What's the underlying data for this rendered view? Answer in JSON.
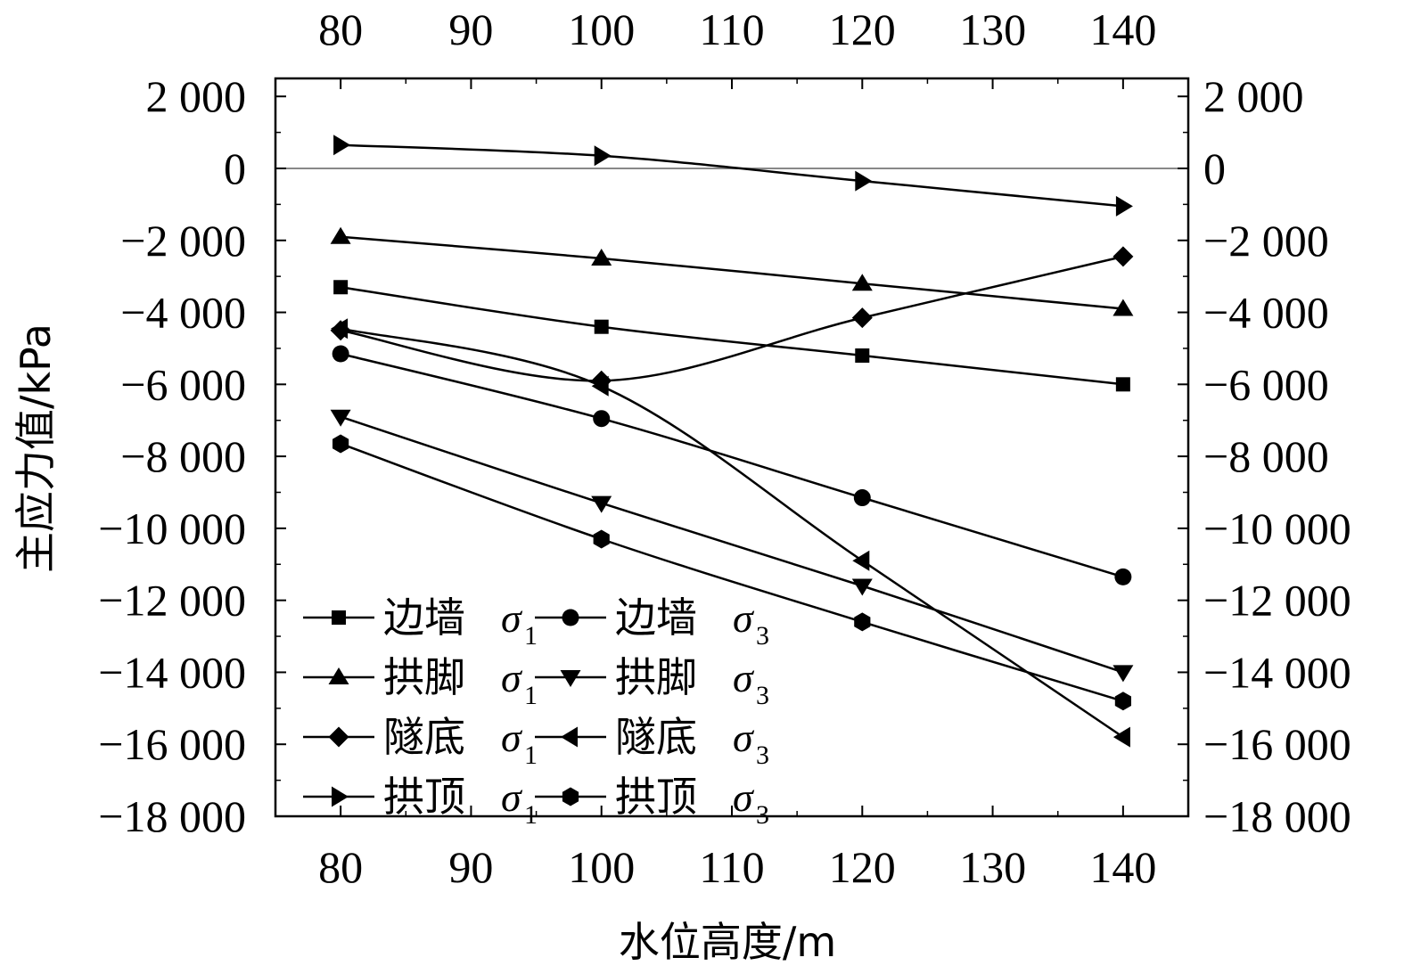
{
  "chart_data": {
    "type": "line",
    "xlabel": "水位高度/m",
    "ylabel": "主应力值/kPa",
    "x": [
      80,
      100,
      120,
      140
    ],
    "xlim": [
      75,
      145
    ],
    "ylim": [
      -18000,
      2000
    ],
    "x_ticks": [
      "80",
      "90",
      "100",
      "110",
      "120",
      "130",
      "140"
    ],
    "y_ticks": [
      "2 000",
      "0",
      "−2 000",
      "−4 000",
      "−6 000",
      "−8 000",
      "−10 000",
      "−12 000",
      "−14 000",
      "−16 000",
      "−18 000"
    ],
    "secondary_axes": "top and right mirror bottom and left",
    "zero_line": true,
    "legend_placement": "lower-left",
    "series": [
      {
        "name": "边墙",
        "symbol": "σ",
        "sub": "1",
        "marker": "square",
        "values": [
          -3300,
          -4400,
          -5200,
          -6000
        ]
      },
      {
        "name": "边墙",
        "symbol": "σ",
        "sub": "3",
        "marker": "circle",
        "values": [
          -5150,
          -6950,
          -9150,
          -11350
        ]
      },
      {
        "name": "拱脚",
        "symbol": "σ",
        "sub": "1",
        "marker": "triangle-up",
        "values": [
          -1900,
          -2500,
          -3200,
          -3900
        ]
      },
      {
        "name": "拱脚",
        "symbol": "σ",
        "sub": "3",
        "marker": "triangle-down",
        "values": [
          -6900,
          -9300,
          -11600,
          -14000
        ]
      },
      {
        "name": "隧底",
        "symbol": "σ",
        "sub": "1",
        "marker": "diamond",
        "values": [
          -4500,
          -5900,
          -4150,
          -2450
        ]
      },
      {
        "name": "隧底",
        "symbol": "σ",
        "sub": "3",
        "marker": "triangle-left",
        "values": [
          -4450,
          -6050,
          -10900,
          -15800
        ]
      },
      {
        "name": "拱顶",
        "symbol": "σ",
        "sub": "1",
        "marker": "triangle-right",
        "values": [
          650,
          350,
          -350,
          -1050
        ]
      },
      {
        "name": "拱顶",
        "symbol": "σ",
        "sub": "3",
        "marker": "hexagon",
        "values": [
          -7650,
          -10300,
          -12600,
          -14800
        ]
      }
    ]
  }
}
